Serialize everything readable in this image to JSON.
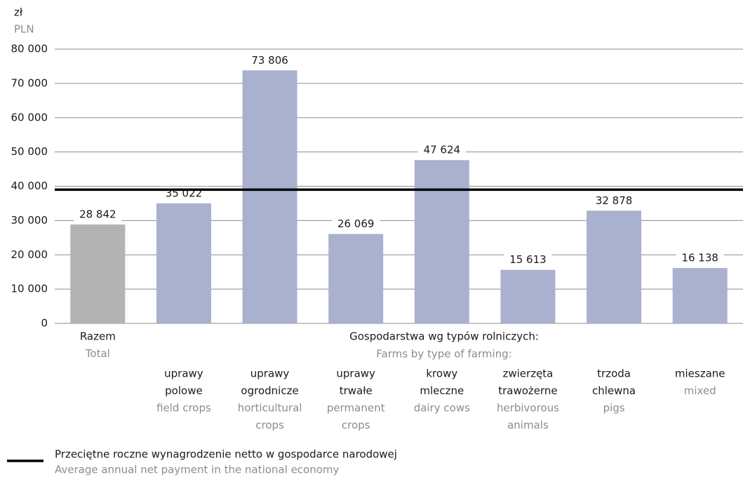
{
  "chart_data": {
    "type": "bar",
    "unit_label": "zł",
    "unit_label_en": "PLN",
    "group_label": "Gospodarstwa wg typów rolniczych:",
    "group_label_en": "Farms by type of farming:",
    "categories": [
      {
        "pl": [
          "Razem"
        ],
        "en": [
          "Total"
        ]
      },
      {
        "pl": [
          "uprawy",
          "polowe"
        ],
        "en": [
          "field crops"
        ]
      },
      {
        "pl": [
          "uprawy",
          "ogrodnicze"
        ],
        "en": [
          "horticultural",
          "crops"
        ]
      },
      {
        "pl": [
          "uprawy",
          "trwałe"
        ],
        "en": [
          "permanent",
          "crops"
        ]
      },
      {
        "pl": [
          "krowy",
          "mleczne"
        ],
        "en": [
          "dairy cows"
        ]
      },
      {
        "pl": [
          "zwierzęta",
          "trawożerne"
        ],
        "en": [
          "herbivorous",
          "animals"
        ]
      },
      {
        "pl": [
          "trzoda",
          "chlewna"
        ],
        "en": [
          "pigs"
        ]
      },
      {
        "pl": [
          "mieszane"
        ],
        "en": [
          "mixed"
        ]
      }
    ],
    "values": [
      28842,
      35022,
      73806,
      26069,
      47624,
      15613,
      32878,
      16138
    ],
    "value_labels": [
      "28 842",
      "35 022",
      "73 806",
      "26 069",
      "47 624",
      "15 613",
      "32 878",
      "16 138"
    ],
    "colors": [
      "#b3b3b3",
      "#a9b1cf",
      "#a9b1cf",
      "#a9b1cf",
      "#a9b1cf",
      "#a9b1cf",
      "#a9b1cf",
      "#a9b1cf"
    ],
    "ylim": [
      0,
      80000
    ],
    "yticks": [
      0,
      {
        "value": 10000,
        "label": "10 000"
      },
      {
        "value": 20000,
        "label": "20 000"
      },
      {
        "value": 30000,
        "label": "30 000"
      },
      {
        "value": 40000,
        "label": "40 000"
      },
      {
        "value": 50000,
        "label": "50 000"
      },
      {
        "value": 60000,
        "label": "60 000"
      },
      {
        "value": 70000,
        "label": "70 000"
      },
      {
        "value": 80000,
        "label": "80 000"
      }
    ],
    "grid": true,
    "reference_line": {
      "value": 39000,
      "color": "#000000",
      "name": "Przeciętne roczne wynagrodzenie netto w gospodarce narodowej",
      "name_en": "Average annual net payment in the national economy"
    }
  }
}
